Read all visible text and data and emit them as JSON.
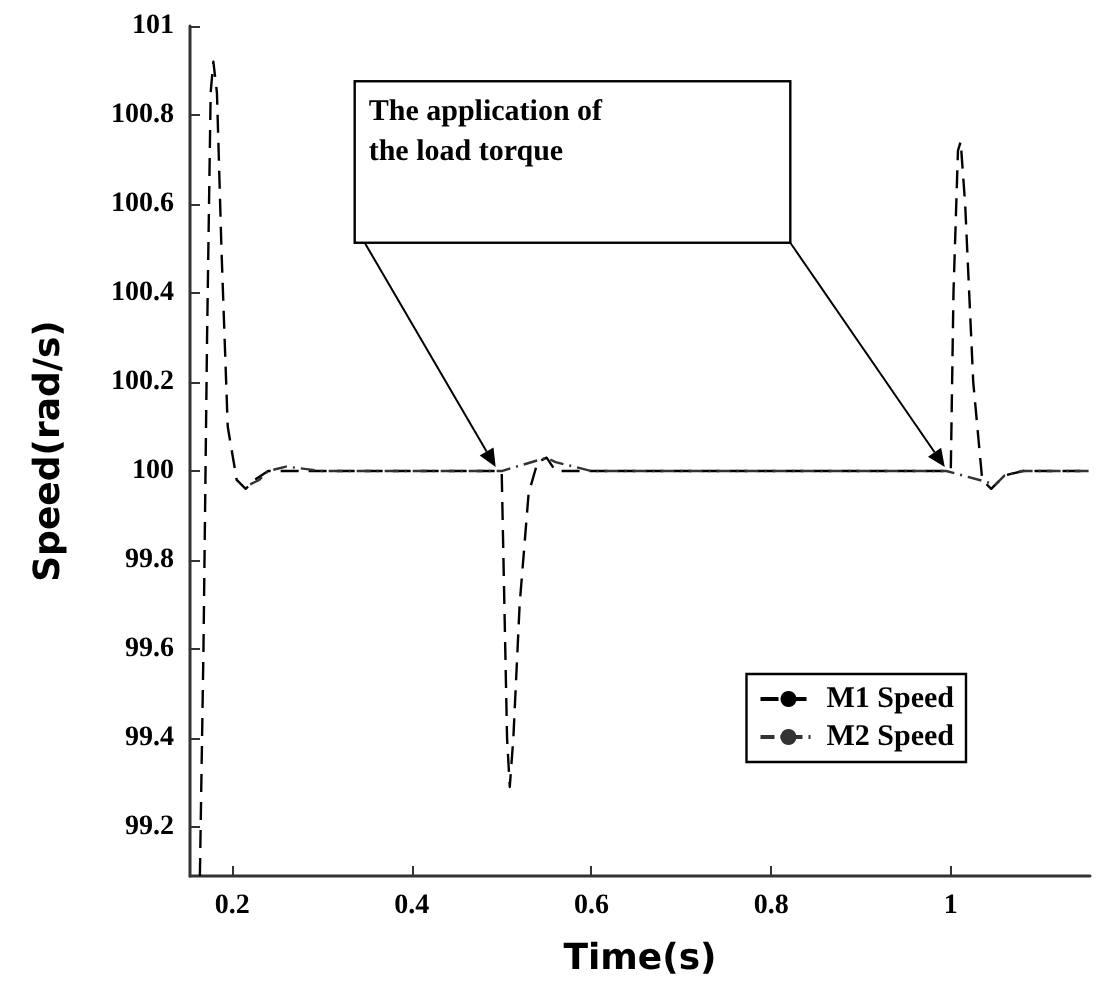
{
  "chart_data": {
    "type": "line",
    "xlabel": "Time(s)",
    "ylabel": "Speed(rad/s)",
    "annotations": [
      "The application of\nthe load torque"
    ],
    "xlim": [
      0.153,
      1.155
    ],
    "xticks": [
      0.2,
      0.4,
      0.6,
      0.8,
      1
    ],
    "ylim": [
      99.09,
      101
    ],
    "yticks": [
      99.2,
      99.4,
      99.6,
      99.8,
      100,
      100.2,
      100.4,
      100.6,
      100.8,
      101
    ],
    "grid": false,
    "legend": "bottom right",
    "marker": "none",
    "series": [
      {
        "name": "M1 Speed",
        "color": "#000000",
        "line_style": "dashed",
        "x": [
          0.164,
          0.168,
          0.172,
          0.176,
          0.179,
          0.183,
          0.188,
          0.195,
          0.205,
          0.215,
          0.225,
          0.24,
          0.3,
          0.4,
          0.5,
          0.502,
          0.506,
          0.509,
          0.513,
          0.52,
          0.53,
          0.54,
          0.55,
          0.56,
          0.7,
          0.9,
          1.0,
          1.003,
          1.008,
          1.011,
          1.016,
          1.025,
          1.035,
          1.045,
          1.06,
          1.08,
          1.155
        ],
        "values": [
          99.09,
          99.6,
          100.3,
          100.85,
          100.92,
          100.85,
          100.5,
          100.1,
          99.98,
          99.96,
          99.98,
          100,
          100,
          100,
          100,
          99.8,
          99.4,
          99.29,
          99.4,
          99.7,
          99.95,
          100.02,
          100.03,
          100,
          100,
          100,
          100,
          100.4,
          100.72,
          100.74,
          100.6,
          100.2,
          99.98,
          99.96,
          99.99,
          100,
          100
        ]
      },
      {
        "name": "M2 Speed",
        "color": "#333333",
        "line_style": "dashdot",
        "x": [
          0.22,
          0.23,
          0.24,
          0.26,
          0.3,
          0.4,
          0.5,
          0.55,
          0.56,
          0.6,
          0.7,
          0.8,
          0.9,
          0.995,
          1.05,
          1.06,
          1.08,
          1.155
        ],
        "values": [
          99.97,
          99.98,
          100,
          100.01,
          100,
          100,
          100,
          100.03,
          100.02,
          100,
          100,
          100,
          100,
          100,
          99.97,
          99.99,
          100,
          100
        ]
      }
    ]
  }
}
